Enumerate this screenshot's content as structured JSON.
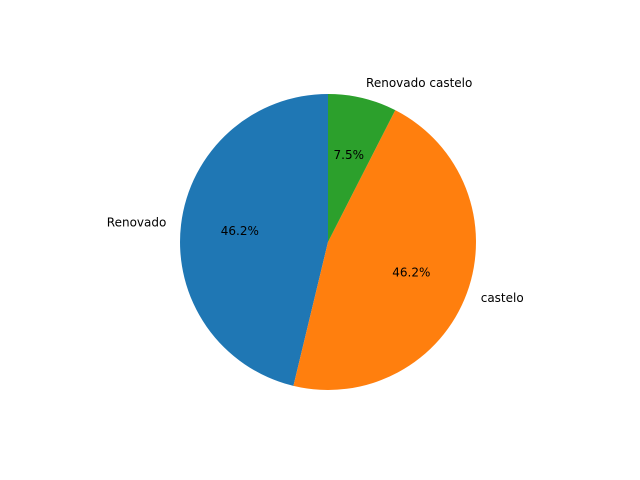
{
  "chart_data": {
    "type": "pie",
    "title": "",
    "labels": [
      "Renovado",
      "castelo",
      "Renovado castelo"
    ],
    "values": [
      46.2,
      46.2,
      7.5
    ],
    "percent_labels": [
      "46.2%",
      "46.2%",
      "7.5%"
    ],
    "colors": [
      "#1f77b4",
      "#ff7f0e",
      "#2ca02c"
    ],
    "start_angle_deg": 90,
    "direction": "counterclockwise",
    "legend": "none"
  }
}
